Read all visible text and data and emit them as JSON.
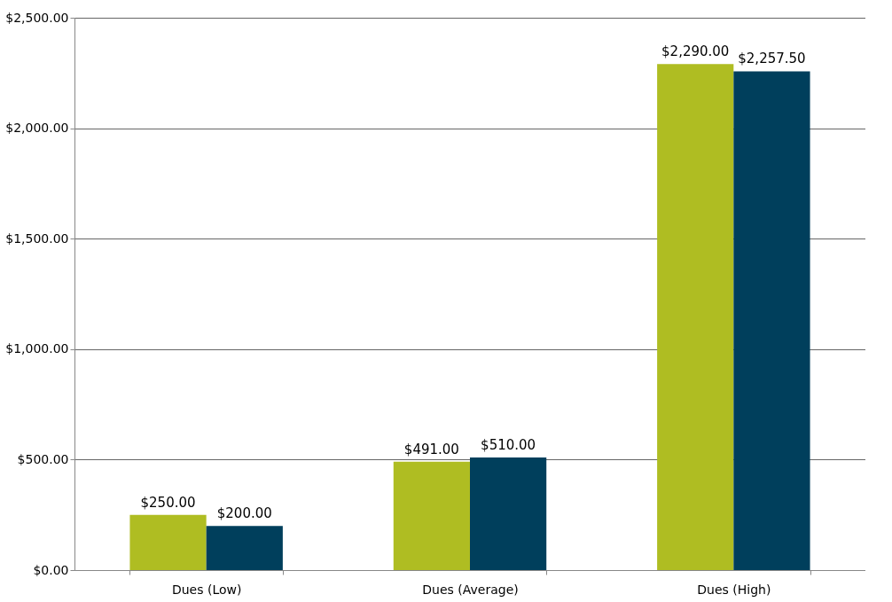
{
  "chart_data": {
    "type": "bar",
    "categories": [
      "Dues (Low)",
      "Dues (Average)",
      "Dues (High)"
    ],
    "series": [
      {
        "color": "#afbd22",
        "values": [
          250,
          491,
          2290
        ],
        "value_labels": [
          "$250.00",
          "$491.00",
          "$2,290.00"
        ]
      },
      {
        "color": "#003f5c",
        "values": [
          200,
          510,
          2257.5
        ],
        "value_labels": [
          "$200.00",
          "$510.00",
          "$2,257.50"
        ]
      }
    ],
    "ylim": [
      0,
      2500
    ],
    "yticks": [
      {
        "value": 0,
        "label": "$0.00"
      },
      {
        "value": 500,
        "label": "$500.00"
      },
      {
        "value": 1000,
        "label": "$1,000.00"
      },
      {
        "value": 1500,
        "label": "$1,500.00"
      },
      {
        "value": 2000,
        "label": "$2,000.00"
      },
      {
        "value": 2500,
        "label": "$2,500.00"
      }
    ],
    "grid": "y",
    "legend": false
  }
}
